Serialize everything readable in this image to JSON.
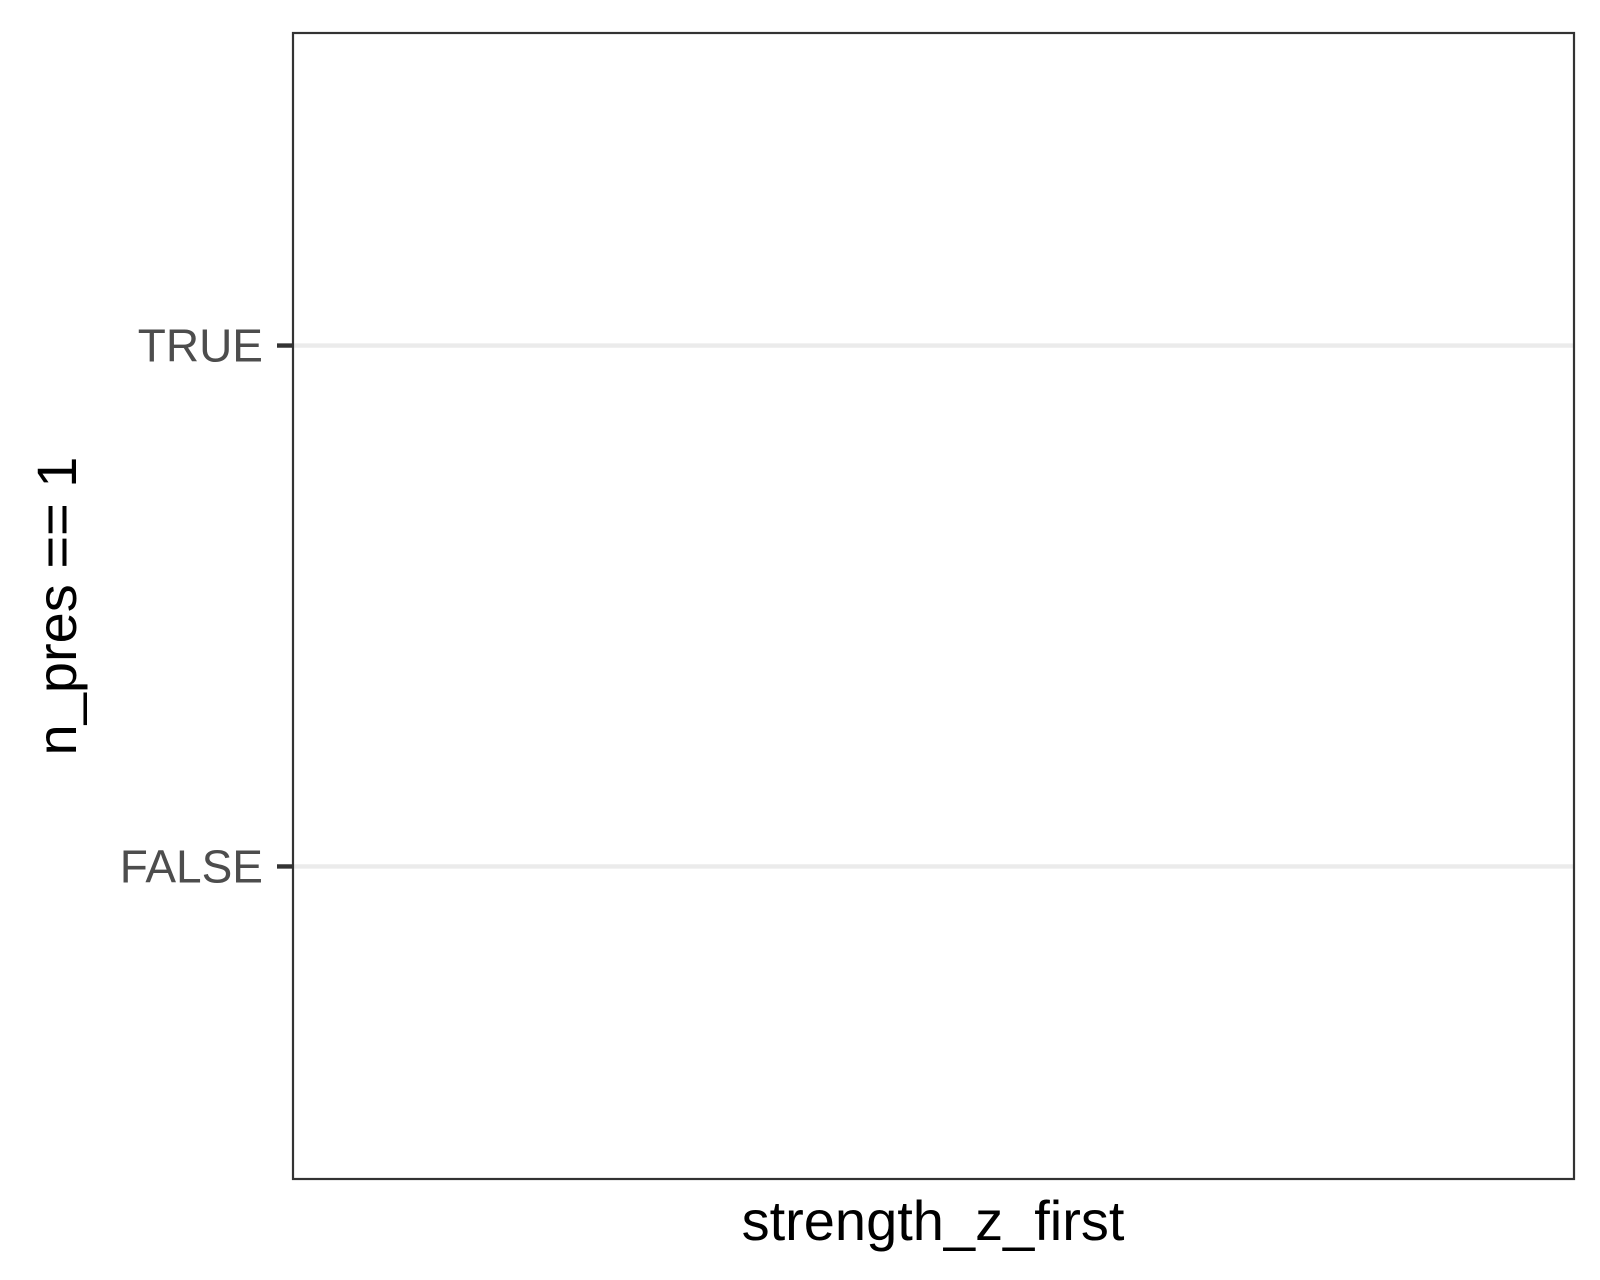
{
  "chart_data": {
    "type": "scatter",
    "title": "",
    "xlabel": "strength_z_first",
    "ylabel": "n_pres == 1",
    "y_categories": [
      "FALSE",
      "TRUE"
    ],
    "series": [],
    "x_ticks": [],
    "grid": true,
    "legend": "none",
    "colors": {
      "panel_border": "#333333",
      "grid": "#ebebeb",
      "tick": "#333333",
      "tick_label": "#4d4d4d",
      "axis_title": "#000000"
    }
  }
}
